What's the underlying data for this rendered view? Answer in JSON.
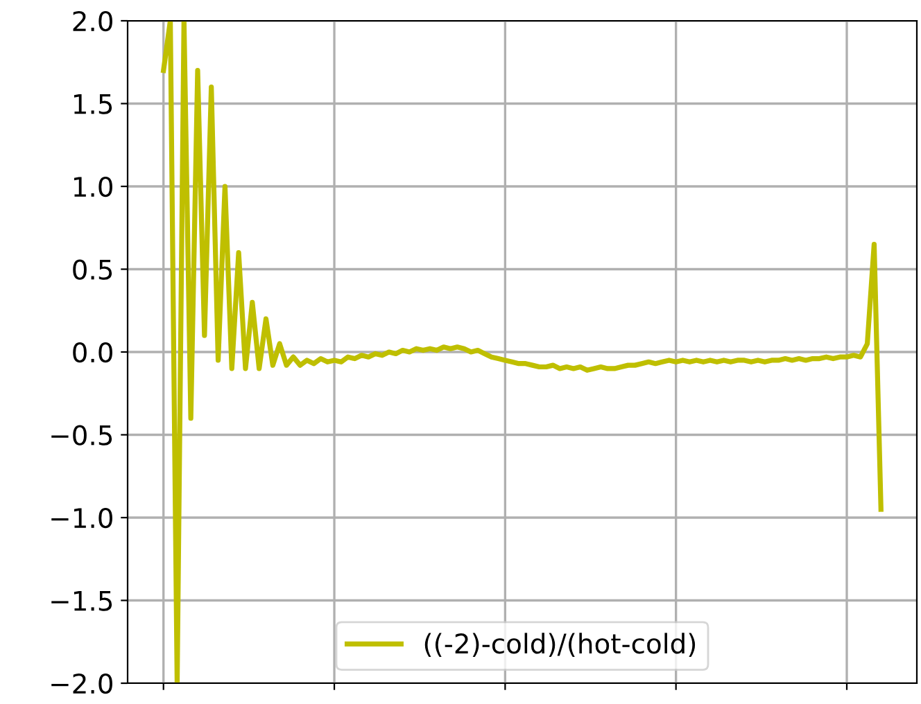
{
  "chart_data": {
    "type": "line",
    "categories": [
      null,
      null,
      null,
      null,
      null,
      null,
      null,
      null,
      null,
      null,
      null,
      null,
      null,
      null,
      null,
      null,
      null,
      null,
      null,
      null,
      null,
      null,
      null,
      null,
      null,
      null,
      null,
      null,
      null,
      null,
      null,
      null,
      null,
      null,
      null,
      null,
      null,
      null,
      null,
      null,
      null,
      null,
      null,
      null,
      null,
      null,
      null,
      null,
      null,
      null,
      null,
      null,
      null,
      null,
      null,
      null,
      null,
      null,
      null,
      null,
      null,
      null,
      null,
      null,
      null,
      null,
      null,
      null,
      null,
      null,
      null,
      null,
      null,
      null,
      null,
      null,
      null,
      null,
      null,
      null,
      null,
      null,
      null,
      null,
      null,
      null,
      null,
      null,
      null,
      null,
      null,
      null,
      null,
      null,
      null,
      null,
      null,
      null,
      null,
      null,
      null,
      null,
      null,
      null,
      null,
      null
    ],
    "ylim": [
      -2.0,
      2.0
    ],
    "yticks": [
      {
        "value": -2.0,
        "label": "−2.0"
      },
      {
        "value": -1.5,
        "label": "−1.5"
      },
      {
        "value": -1.0,
        "label": "−1.0"
      },
      {
        "value": -0.5,
        "label": "−0.5"
      },
      {
        "value": 0.0,
        "label": "0.0"
      },
      {
        "value": 0.5,
        "label": "0.5"
      },
      {
        "value": 1.0,
        "label": "1.0"
      },
      {
        "value": 1.5,
        "label": "1.5"
      },
      {
        "value": 2.0,
        "label": "2.0"
      }
    ],
    "grid": true,
    "legend": "bottom",
    "marker": "none",
    "line_style": "solid",
    "series": [
      {
        "name": "((-2)-cold)/(hot-cold)",
        "color": "#bfbf00",
        "values": [
          1.7,
          2.0,
          -2.0,
          2.0,
          -0.4,
          1.7,
          0.1,
          1.6,
          -0.05,
          1.0,
          -0.1,
          0.6,
          -0.1,
          0.3,
          -0.1,
          0.2,
          -0.08,
          0.05,
          -0.08,
          -0.03,
          -0.08,
          -0.05,
          -0.07,
          -0.04,
          -0.06,
          -0.05,
          -0.06,
          -0.03,
          -0.04,
          -0.02,
          -0.03,
          -0.01,
          -0.02,
          0.0,
          -0.01,
          0.01,
          0.0,
          0.02,
          0.01,
          0.02,
          0.01,
          0.03,
          0.02,
          0.03,
          0.02,
          0.0,
          0.01,
          -0.01,
          -0.03,
          -0.04,
          -0.05,
          -0.06,
          -0.07,
          -0.07,
          -0.08,
          -0.09,
          -0.09,
          -0.08,
          -0.1,
          -0.09,
          -0.1,
          -0.09,
          -0.11,
          -0.1,
          -0.09,
          -0.1,
          -0.1,
          -0.09,
          -0.08,
          -0.08,
          -0.07,
          -0.06,
          -0.07,
          -0.06,
          -0.05,
          -0.06,
          -0.05,
          -0.06,
          -0.05,
          -0.06,
          -0.05,
          -0.06,
          -0.05,
          -0.06,
          -0.05,
          -0.05,
          -0.06,
          -0.05,
          -0.06,
          -0.05,
          -0.05,
          -0.04,
          -0.05,
          -0.04,
          -0.05,
          -0.04,
          -0.04,
          -0.03,
          -0.04,
          -0.03,
          -0.03,
          -0.02,
          -0.03,
          0.05,
          0.65,
          -0.95
        ]
      }
    ]
  }
}
